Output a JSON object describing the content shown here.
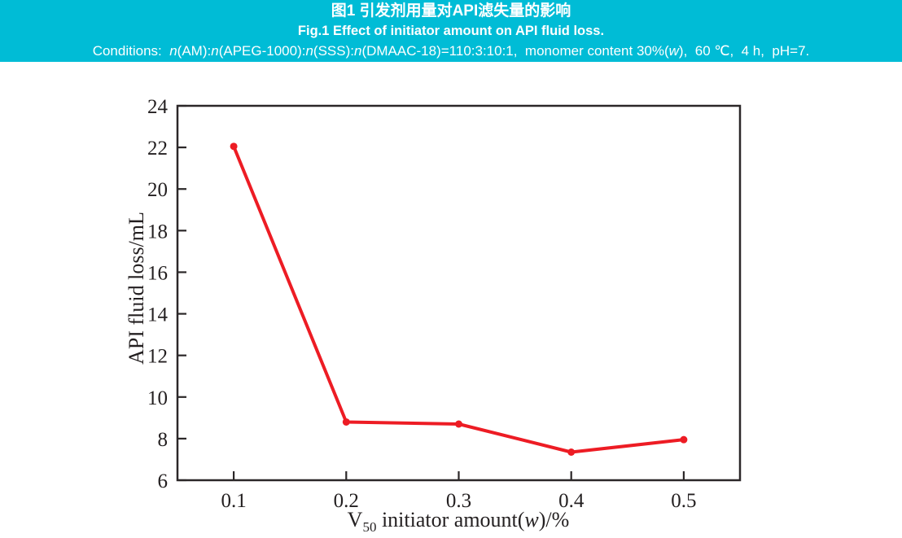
{
  "header": {
    "bg_color": "#00bcd6",
    "text_color": "#ffffff",
    "title_zh": "图1 引发剂用量对API滤失量的影响",
    "title_en": "Fig.1 Effect of initiator amount on API fluid loss.",
    "conditions_html": "Conditions:&nbsp; <i>n</i>(AM):<i>n</i>(APEG-1000):<i>n</i>(SSS):<i>n</i>(DMAAC-18)=110:3:10:1,&nbsp; monomer content 30%(<i>w</i>),&nbsp; 60 ℃,&nbsp; 4 h,&nbsp; pH=7."
  },
  "chart_data": {
    "type": "line",
    "x": [
      0.1,
      0.2,
      0.3,
      0.4,
      0.5
    ],
    "y": [
      22.05,
      8.8,
      8.7,
      7.35,
      7.95
    ],
    "series_name": "API fluid loss",
    "xlabel": "V50 initiator amount(w)/%",
    "xlabel_html": "V<sub>50</sub> initiator amount(<i>w</i>)/%",
    "ylabel": "API fluid loss/mL",
    "xlim": [
      0.05,
      0.55
    ],
    "ylim": [
      6,
      24
    ],
    "x_ticks": [
      0.1,
      0.2,
      0.3,
      0.4,
      0.5
    ],
    "x_tick_labels": [
      "0.1",
      "0.2",
      "0.3",
      "0.4",
      "0.5"
    ],
    "y_ticks": [
      6,
      8,
      10,
      12,
      14,
      16,
      18,
      20,
      22,
      24
    ],
    "grid": false,
    "legend": null,
    "line_color": "#ed1c24",
    "marker": "circle",
    "axis_color": "#2b2728",
    "tick_label_color": "#231f20"
  }
}
